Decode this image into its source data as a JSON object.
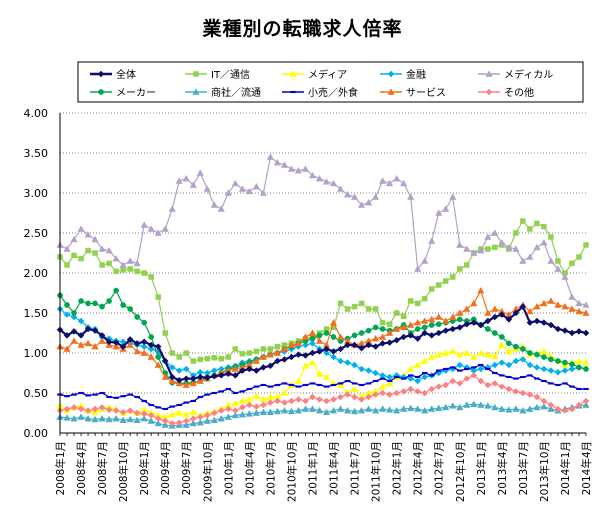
{
  "chart_data": {
    "type": "line",
    "title": "業種別の転職求人倍率",
    "xlabel": "",
    "ylabel": "",
    "ylim": [
      0,
      4
    ],
    "yticks": [
      "0.00",
      "0.50",
      "1.00",
      "1.50",
      "2.00",
      "2.50",
      "3.00",
      "3.50",
      "4.00"
    ],
    "grid": "horizontal",
    "legend_position": "top",
    "x": [
      "2008年1月",
      "2008年2月",
      "2008年3月",
      "2008年4月",
      "2008年5月",
      "2008年6月",
      "2008年7月",
      "2008年8月",
      "2008年9月",
      "2008年10月",
      "2008年11月",
      "2008年12月",
      "2009年1月",
      "2009年2月",
      "2009年3月",
      "2009年4月",
      "2009年5月",
      "2009年6月",
      "2009年7月",
      "2009年8月",
      "2009年9月",
      "2009年10月",
      "2009年11月",
      "2009年12月",
      "2010年1月",
      "2010年2月",
      "2010年3月",
      "2010年4月",
      "2010年5月",
      "2010年6月",
      "2010年7月",
      "2010年8月",
      "2010年9月",
      "2010年10月",
      "2010年11月",
      "2010年12月",
      "2011年1月",
      "2011年2月",
      "2011年3月",
      "2011年4月",
      "2011年5月",
      "2011年6月",
      "2011年7月",
      "2011年8月",
      "2011年9月",
      "2011年10月",
      "2011年11月",
      "2011年12月",
      "2012年1月",
      "2012年2月",
      "2012年3月",
      "2012年4月",
      "2012年5月",
      "2012年6月",
      "2012年7月",
      "2012年8月",
      "2012年9月",
      "2012年10月",
      "2012年11月",
      "2012年12月",
      "2013年1月",
      "2013年2月",
      "2013年3月",
      "2013年4月",
      "2013年5月",
      "2013年6月",
      "2013年7月",
      "2013年8月",
      "2013年9月",
      "2013年10月",
      "2013年11月",
      "2013年12月",
      "2014年1月",
      "2014年2月",
      "2014年3月",
      "2014年4月"
    ],
    "tick_labels": [
      "2008年1月",
      "2008年4月",
      "2008年7月",
      "2008年10月",
      "2009年1月",
      "2009年4月",
      "2009年7月",
      "2009年10月",
      "2010年1月",
      "2010年4月",
      "2010年7月",
      "2010年10月",
      "2011年1月",
      "2011年4月",
      "2011年7月",
      "2011年10月",
      "2012年1月",
      "2012年4月",
      "2012年7月",
      "2012年10月",
      "2013年1月",
      "2013年4月",
      "2013年7月",
      "2013年10月",
      "2014年1月",
      "2014年4月"
    ],
    "series": [
      {
        "name": "全体",
        "color": "#0d0d6b",
        "marker": "diamond",
        "values": [
          1.29,
          1.22,
          1.27,
          1.22,
          1.3,
          1.28,
          1.22,
          1.14,
          1.13,
          1.08,
          1.17,
          1.12,
          1.14,
          1.1,
          1.08,
          0.9,
          0.7,
          0.66,
          0.68,
          0.68,
          0.7,
          0.69,
          0.71,
          0.72,
          0.74,
          0.72,
          0.78,
          0.8,
          0.78,
          0.82,
          0.84,
          0.9,
          0.92,
          0.95,
          0.98,
          0.97,
          1.0,
          1.02,
          1.05,
          1.02,
          1.05,
          1.1,
          1.1,
          1.06,
          1.1,
          1.08,
          1.12,
          1.13,
          1.16,
          1.2,
          1.22,
          1.18,
          1.25,
          1.22,
          1.25,
          1.28,
          1.3,
          1.32,
          1.36,
          1.38,
          1.35,
          1.4,
          1.45,
          1.48,
          1.42,
          1.5,
          1.58,
          1.38,
          1.4,
          1.38,
          1.35,
          1.3,
          1.28,
          1.25,
          1.27,
          1.25
        ]
      },
      {
        "name": "IT／通信",
        "color": "#92d050",
        "marker": "square",
        "values": [
          2.2,
          2.1,
          2.22,
          2.18,
          2.28,
          2.25,
          2.1,
          2.12,
          2.02,
          2.04,
          2.05,
          2.02,
          2.0,
          1.95,
          1.7,
          1.25,
          1.0,
          0.95,
          1.0,
          0.9,
          0.92,
          0.93,
          0.94,
          0.93,
          0.95,
          1.05,
          0.99,
          1.0,
          1.02,
          1.05,
          1.05,
          1.08,
          1.1,
          1.12,
          1.15,
          1.18,
          1.2,
          1.25,
          1.3,
          1.32,
          1.62,
          1.55,
          1.58,
          1.62,
          1.55,
          1.55,
          1.38,
          1.36,
          1.5,
          1.46,
          1.65,
          1.62,
          1.68,
          1.8,
          1.85,
          1.9,
          1.95,
          2.05,
          2.1,
          2.25,
          2.3,
          2.3,
          2.32,
          2.35,
          2.3,
          2.5,
          2.65,
          2.55,
          2.62,
          2.58,
          2.45,
          2.15,
          2.0,
          2.12,
          2.2,
          2.35
        ]
      },
      {
        "name": "メディア",
        "color": "#ffff00",
        "marker": "triangle",
        "values": [
          0.34,
          0.28,
          0.32,
          0.34,
          0.28,
          0.26,
          0.3,
          0.32,
          0.3,
          0.25,
          0.28,
          0.25,
          0.29,
          0.25,
          0.22,
          0.2,
          0.23,
          0.25,
          0.23,
          0.26,
          0.22,
          0.25,
          0.27,
          0.3,
          0.35,
          0.37,
          0.4,
          0.42,
          0.46,
          0.42,
          0.45,
          0.45,
          0.5,
          0.6,
          0.65,
          0.84,
          0.88,
          0.74,
          0.7,
          0.62,
          0.6,
          0.5,
          0.55,
          0.45,
          0.5,
          0.52,
          0.58,
          0.62,
          0.7,
          0.72,
          0.8,
          0.85,
          0.9,
          0.95,
          0.98,
          1.0,
          1.02,
          0.98,
          1.0,
          0.95,
          1.0,
          0.98,
          0.96,
          1.1,
          1.02,
          1.05,
          1.08,
          0.98,
          1.0,
          1.02,
          0.96,
          0.9,
          0.85,
          0.88,
          0.9,
          0.88
        ]
      },
      {
        "name": "金融",
        "color": "#00b0f0",
        "marker": "diamond",
        "values": [
          1.55,
          1.48,
          1.45,
          1.4,
          1.32,
          1.3,
          1.2,
          1.18,
          1.15,
          1.14,
          1.12,
          1.1,
          1.08,
          1.05,
          1.02,
          0.9,
          0.82,
          0.78,
          0.8,
          0.72,
          0.76,
          0.75,
          0.78,
          0.8,
          0.82,
          0.84,
          0.88,
          0.9,
          0.92,
          0.95,
          0.98,
          1.0,
          1.02,
          1.05,
          1.08,
          1.1,
          1.12,
          1.05,
          1.0,
          0.95,
          0.9,
          0.88,
          0.85,
          0.8,
          0.78,
          0.75,
          0.72,
          0.7,
          0.72,
          0.7,
          0.68,
          0.65,
          0.7,
          0.72,
          0.75,
          0.78,
          0.8,
          0.85,
          0.82,
          0.78,
          0.8,
          0.82,
          0.85,
          0.88,
          0.85,
          0.9,
          0.92,
          0.85,
          0.82,
          0.8,
          0.78,
          0.76,
          0.78,
          0.8,
          0.82,
          0.8
        ]
      },
      {
        "name": "メディカル",
        "color": "#b3a2c7",
        "marker": "triangle",
        "values": [
          2.35,
          2.3,
          2.42,
          2.55,
          2.48,
          2.42,
          2.3,
          2.28,
          2.18,
          2.1,
          2.15,
          2.12,
          2.6,
          2.55,
          2.5,
          2.55,
          2.8,
          3.15,
          3.18,
          3.1,
          3.25,
          3.05,
          2.85,
          2.8,
          3.0,
          3.12,
          3.05,
          3.02,
          3.08,
          3.0,
          3.45,
          3.38,
          3.35,
          3.3,
          3.28,
          3.3,
          3.22,
          3.18,
          3.14,
          3.12,
          3.05,
          2.98,
          2.95,
          2.85,
          2.88,
          2.95,
          3.15,
          3.12,
          3.18,
          3.12,
          2.95,
          2.05,
          2.15,
          2.4,
          2.75,
          2.8,
          2.95,
          2.35,
          2.3,
          2.25,
          2.28,
          2.45,
          2.5,
          2.38,
          2.32,
          2.3,
          2.15,
          2.2,
          2.32,
          2.38,
          2.15,
          2.05,
          1.95,
          1.7,
          1.62,
          1.6
        ]
      },
      {
        "name": "メーカー",
        "color": "#00a650",
        "marker": "circle",
        "values": [
          1.72,
          1.6,
          1.5,
          1.65,
          1.62,
          1.62,
          1.58,
          1.65,
          1.78,
          1.6,
          1.55,
          1.45,
          1.38,
          1.2,
          0.95,
          0.75,
          0.63,
          0.62,
          0.62,
          0.63,
          0.65,
          0.7,
          0.72,
          0.75,
          0.8,
          0.82,
          0.85,
          0.88,
          0.92,
          0.95,
          0.98,
          1.0,
          1.05,
          1.08,
          1.12,
          1.15,
          1.18,
          1.22,
          1.25,
          1.2,
          1.15,
          1.18,
          1.22,
          1.25,
          1.28,
          1.32,
          1.3,
          1.28,
          1.3,
          1.35,
          1.25,
          1.3,
          1.32,
          1.35,
          1.36,
          1.38,
          1.4,
          1.42,
          1.4,
          1.42,
          1.35,
          1.3,
          1.25,
          1.2,
          1.12,
          1.08,
          1.05,
          1.0,
          0.98,
          0.95,
          0.92,
          0.9,
          0.88,
          0.86,
          0.82,
          0.8
        ]
      },
      {
        "name": "商社／流通",
        "color": "#4bacc6",
        "marker": "triangle",
        "values": [
          0.2,
          0.19,
          0.18,
          0.2,
          0.18,
          0.17,
          0.18,
          0.17,
          0.18,
          0.16,
          0.17,
          0.16,
          0.18,
          0.15,
          0.12,
          0.1,
          0.09,
          0.1,
          0.1,
          0.12,
          0.13,
          0.15,
          0.16,
          0.18,
          0.2,
          0.22,
          0.23,
          0.24,
          0.25,
          0.26,
          0.26,
          0.27,
          0.28,
          0.27,
          0.28,
          0.3,
          0.3,
          0.28,
          0.26,
          0.28,
          0.3,
          0.28,
          0.27,
          0.28,
          0.3,
          0.28,
          0.3,
          0.29,
          0.28,
          0.3,
          0.31,
          0.3,
          0.28,
          0.3,
          0.31,
          0.32,
          0.34,
          0.32,
          0.35,
          0.36,
          0.35,
          0.34,
          0.32,
          0.3,
          0.29,
          0.3,
          0.28,
          0.3,
          0.32,
          0.33,
          0.3,
          0.28,
          0.3,
          0.32,
          0.34,
          0.35
        ]
      },
      {
        "name": "小売／外食",
        "color": "#0000cc",
        "marker": "dash",
        "values": [
          0.48,
          0.46,
          0.48,
          0.5,
          0.47,
          0.48,
          0.5,
          0.45,
          0.44,
          0.46,
          0.48,
          0.45,
          0.4,
          0.35,
          0.32,
          0.3,
          0.33,
          0.35,
          0.38,
          0.4,
          0.45,
          0.48,
          0.5,
          0.52,
          0.55,
          0.5,
          0.52,
          0.55,
          0.58,
          0.6,
          0.58,
          0.6,
          0.62,
          0.6,
          0.58,
          0.6,
          0.62,
          0.6,
          0.58,
          0.6,
          0.62,
          0.65,
          0.62,
          0.6,
          0.62,
          0.65,
          0.68,
          0.65,
          0.7,
          0.68,
          0.72,
          0.7,
          0.75,
          0.72,
          0.78,
          0.8,
          0.82,
          0.78,
          0.8,
          0.82,
          0.85,
          0.8,
          0.75,
          0.72,
          0.7,
          0.68,
          0.7,
          0.72,
          0.68,
          0.65,
          0.62,
          0.6,
          0.62,
          0.58,
          0.55,
          0.55
        ]
      },
      {
        "name": "サービス",
        "color": "#f07020",
        "marker": "triangle",
        "values": [
          1.08,
          1.05,
          1.15,
          1.1,
          1.12,
          1.08,
          1.15,
          1.1,
          1.08,
          1.05,
          1.1,
          1.02,
          1.0,
          0.95,
          0.85,
          0.7,
          0.65,
          0.62,
          0.6,
          0.62,
          0.65,
          0.68,
          0.72,
          0.75,
          0.78,
          0.8,
          0.82,
          0.85,
          0.9,
          0.95,
          0.98,
          1.0,
          1.05,
          1.1,
          1.12,
          1.2,
          1.25,
          1.15,
          1.1,
          1.38,
          1.2,
          1.15,
          1.1,
          1.12,
          1.15,
          1.18,
          1.2,
          1.25,
          1.3,
          1.32,
          1.35,
          1.38,
          1.4,
          1.42,
          1.45,
          1.4,
          1.45,
          1.5,
          1.55,
          1.62,
          1.78,
          1.5,
          1.55,
          1.52,
          1.48,
          1.55,
          1.6,
          1.52,
          1.58,
          1.62,
          1.65,
          1.6,
          1.58,
          1.55,
          1.52,
          1.5
        ]
      },
      {
        "name": "その他",
        "color": "#ff8080",
        "marker": "diamond",
        "values": [
          0.28,
          0.3,
          0.32,
          0.3,
          0.28,
          0.3,
          0.32,
          0.29,
          0.28,
          0.26,
          0.28,
          0.25,
          0.24,
          0.22,
          0.18,
          0.15,
          0.12,
          0.13,
          0.15,
          0.18,
          0.2,
          0.22,
          0.25,
          0.28,
          0.3,
          0.28,
          0.32,
          0.35,
          0.33,
          0.35,
          0.38,
          0.4,
          0.38,
          0.4,
          0.42,
          0.4,
          0.45,
          0.42,
          0.4,
          0.42,
          0.45,
          0.48,
          0.45,
          0.42,
          0.45,
          0.48,
          0.5,
          0.48,
          0.5,
          0.52,
          0.55,
          0.52,
          0.5,
          0.55,
          0.58,
          0.6,
          0.65,
          0.62,
          0.68,
          0.72,
          0.65,
          0.6,
          0.62,
          0.58,
          0.55,
          0.52,
          0.5,
          0.48,
          0.45,
          0.4,
          0.35,
          0.3,
          0.28,
          0.3,
          0.35,
          0.4
        ]
      }
    ]
  }
}
